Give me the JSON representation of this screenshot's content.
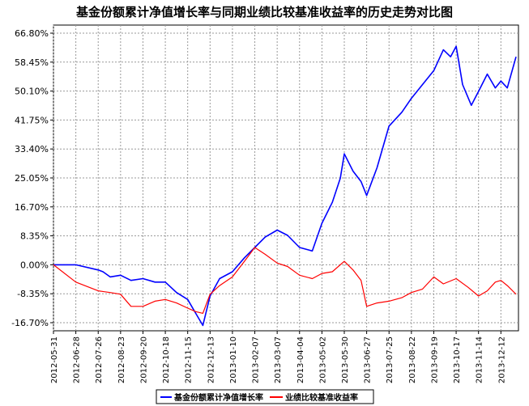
{
  "chart_data": {
    "type": "line",
    "title": "基金份额累计净值增长率与同期业绩比较基准收益率的历史走势对比图",
    "xlabel": "",
    "ylabel": "",
    "ylim": [
      -16.7,
      66.8
    ],
    "y_ticks": [
      "66.80%",
      "58.45%",
      "50.10%",
      "41.75%",
      "33.40%",
      "25.05%",
      "16.70%",
      "8.35%",
      "0.00%",
      "-8.35%",
      "-16.70%"
    ],
    "y_tick_values": [
      66.8,
      58.45,
      50.1,
      41.75,
      33.4,
      25.05,
      16.7,
      8.35,
      0.0,
      -8.35,
      -16.7
    ],
    "x_ticks": [
      "2012-05-31",
      "2012-06-28",
      "2012-07-26",
      "2012-08-23",
      "2012-09-20",
      "2012-10-18",
      "2012-11-15",
      "2012-12-13",
      "2013-01-10",
      "2013-02-07",
      "2013-03-07",
      "2013-04-04",
      "2013-05-02",
      "2013-05-30",
      "2013-06-27",
      "2013-07-25",
      "2013-08-22",
      "2013-09-19",
      "2013-10-17",
      "2013-11-14",
      "2013-12-12"
    ],
    "grid": true,
    "legend_position": "bottom",
    "series": [
      {
        "name": "基金份额累计净值增长率",
        "color": "#0000ff",
        "x": [
          "2012-05-31",
          "2012-06-28",
          "2012-07-26",
          "2012-08-01",
          "2012-08-10",
          "2012-08-23",
          "2012-09-05",
          "2012-09-20",
          "2012-10-05",
          "2012-10-18",
          "2012-11-01",
          "2012-11-15",
          "2012-11-25",
          "2012-12-04",
          "2012-12-13",
          "2012-12-25",
          "2013-01-10",
          "2013-01-25",
          "2013-02-07",
          "2013-02-20",
          "2013-03-07",
          "2013-03-20",
          "2013-04-04",
          "2013-04-20",
          "2013-05-02",
          "2013-05-15",
          "2013-05-25",
          "2013-05-30",
          "2013-06-10",
          "2013-06-20",
          "2013-06-27",
          "2013-07-10",
          "2013-07-25",
          "2013-08-10",
          "2013-08-22",
          "2013-09-05",
          "2013-09-19",
          "2013-10-01",
          "2013-10-10",
          "2013-10-17",
          "2013-10-25",
          "2013-11-05",
          "2013-11-14",
          "2013-11-25",
          "2013-12-05",
          "2013-12-12",
          "2013-12-20",
          "2013-12-31"
        ],
        "values": [
          0.0,
          0.0,
          -1.5,
          -2.0,
          -3.5,
          -3.0,
          -4.5,
          -4.0,
          -5.0,
          -5.0,
          -8.0,
          -10.0,
          -14.0,
          -17.5,
          -9.0,
          -4.0,
          -2.0,
          2.0,
          5.0,
          8.0,
          10.0,
          8.5,
          5.0,
          4.0,
          12.0,
          18.0,
          25.0,
          32.0,
          27.0,
          24.0,
          20.0,
          28.0,
          40.0,
          44.0,
          48.0,
          52.0,
          56.0,
          62.0,
          60.0,
          63.0,
          52.0,
          46.0,
          50.0,
          55.0,
          51.0,
          53.0,
          51.0,
          60.0
        ]
      },
      {
        "name": "业绩比较基准收益率",
        "color": "#ff0000",
        "x": [
          "2012-05-31",
          "2012-06-28",
          "2012-07-26",
          "2012-08-10",
          "2012-08-23",
          "2012-09-05",
          "2012-09-20",
          "2012-10-05",
          "2012-10-18",
          "2012-11-01",
          "2012-11-15",
          "2012-11-25",
          "2012-12-04",
          "2012-12-13",
          "2012-12-25",
          "2013-01-10",
          "2013-01-25",
          "2013-02-07",
          "2013-02-20",
          "2013-03-07",
          "2013-03-20",
          "2013-04-04",
          "2013-04-20",
          "2013-05-02",
          "2013-05-15",
          "2013-05-30",
          "2013-06-10",
          "2013-06-20",
          "2013-06-27",
          "2013-07-10",
          "2013-07-25",
          "2013-08-10",
          "2013-08-22",
          "2013-09-05",
          "2013-09-19",
          "2013-10-01",
          "2013-10-17",
          "2013-11-01",
          "2013-11-14",
          "2013-11-25",
          "2013-12-05",
          "2013-12-12",
          "2013-12-20",
          "2013-12-31"
        ],
        "values": [
          0.0,
          -5.0,
          -7.5,
          -8.0,
          -8.5,
          -12.0,
          -12.0,
          -10.5,
          -10.0,
          -11.0,
          -12.5,
          -13.5,
          -14.0,
          -8.5,
          -6.0,
          -3.5,
          1.0,
          5.0,
          3.0,
          0.5,
          -0.5,
          -3.0,
          -4.0,
          -2.5,
          -2.0,
          1.0,
          -1.5,
          -4.5,
          -12.0,
          -11.0,
          -10.5,
          -9.5,
          -8.0,
          -7.0,
          -3.5,
          -5.5,
          -4.0,
          -6.5,
          -9.0,
          -7.5,
          -5.0,
          -4.5,
          -6.0,
          -8.5
        ]
      }
    ]
  }
}
